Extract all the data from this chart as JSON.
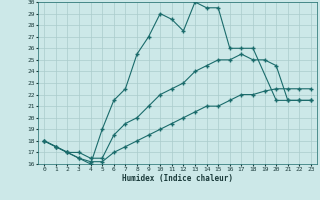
{
  "xlabel": "Humidex (Indice chaleur)",
  "bg_color": "#cce8e8",
  "grid_color": "#aacccc",
  "line_color": "#1a6b6b",
  "xlim": [
    -0.5,
    23.5
  ],
  "ylim": [
    16,
    30
  ],
  "xticks": [
    0,
    1,
    2,
    3,
    4,
    5,
    6,
    7,
    8,
    9,
    10,
    11,
    12,
    13,
    14,
    15,
    16,
    17,
    18,
    19,
    20,
    21,
    22,
    23
  ],
  "yticks": [
    16,
    17,
    18,
    19,
    20,
    21,
    22,
    23,
    24,
    25,
    26,
    27,
    28,
    29,
    30
  ],
  "line1_x": [
    0,
    1,
    2,
    3,
    4,
    5,
    6,
    7,
    8,
    9,
    10,
    11,
    12,
    13,
    14,
    15,
    16,
    17,
    18,
    20,
    21,
    22,
    23
  ],
  "line1_y": [
    18,
    17.5,
    17,
    16.5,
    16,
    19,
    21.5,
    22.5,
    25.5,
    27,
    29,
    28.5,
    27.5,
    30,
    29.5,
    29.5,
    26,
    26,
    26,
    21.5,
    21.5,
    21.5,
    21.5
  ],
  "line2_x": [
    0,
    1,
    2,
    3,
    4,
    5,
    6,
    7,
    8,
    9,
    10,
    11,
    12,
    13,
    14,
    15,
    16,
    17,
    18,
    19,
    20,
    21,
    22,
    23
  ],
  "line2_y": [
    18,
    17.5,
    17,
    17,
    16.5,
    16.5,
    18.5,
    19.5,
    20,
    21,
    22,
    22.5,
    23,
    24,
    24.5,
    25,
    25,
    25.5,
    25,
    25,
    24.5,
    21.5,
    21.5,
    21.5
  ],
  "line3_x": [
    0,
    1,
    2,
    3,
    4,
    5,
    6,
    7,
    8,
    9,
    10,
    11,
    12,
    13,
    14,
    15,
    16,
    17,
    18,
    19,
    20,
    21,
    22,
    23
  ],
  "line3_y": [
    18,
    17.5,
    17,
    16.5,
    16.2,
    16.2,
    17,
    17.5,
    18,
    18.5,
    19,
    19.5,
    20,
    20.5,
    21,
    21,
    21.5,
    22,
    22,
    22.3,
    22.5,
    22.5,
    22.5,
    22.5
  ]
}
